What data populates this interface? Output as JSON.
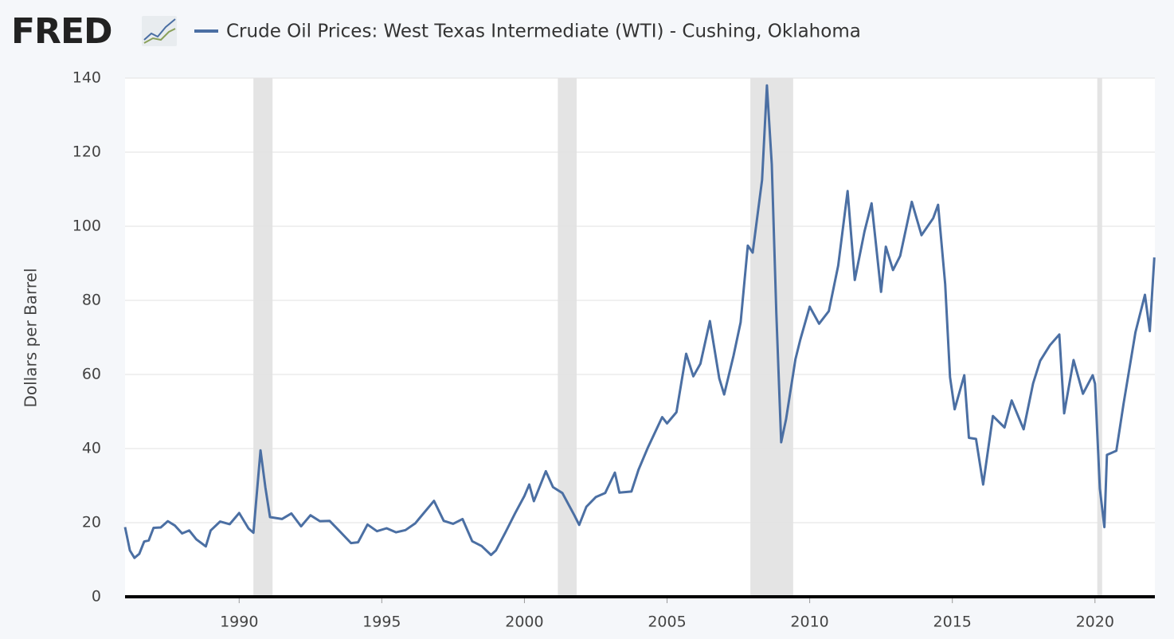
{
  "logo": "FRED",
  "chart_data": {
    "type": "line",
    "title": "Crude Oil Prices: West Texas Intermediate (WTI) - Cushing, Oklahoma",
    "y_label": "Dollars per Barrel",
    "series": [
      {
        "name": "Crude Oil Prices: West Texas Intermediate (WTI) - Cushing, Oklahoma",
        "color": "#4b6fa3",
        "x": [
          1986.0,
          1986.17,
          1986.33,
          1986.5,
          1986.67,
          1986.83,
          1987.0,
          1987.25,
          1987.5,
          1987.75,
          1988.0,
          1988.25,
          1988.5,
          1988.83,
          1989.0,
          1989.33,
          1989.67,
          1990.0,
          1990.33,
          1990.5,
          1990.75,
          1990.92,
          1991.08,
          1991.5,
          1991.83,
          1992.17,
          1992.5,
          1992.83,
          1993.17,
          1993.5,
          1993.92,
          1994.17,
          1994.5,
          1994.83,
          1995.17,
          1995.5,
          1995.83,
          1996.17,
          1996.33,
          1996.83,
          1997.17,
          1997.5,
          1997.83,
          1998.17,
          1998.5,
          1998.83,
          1999.0,
          1999.33,
          1999.67,
          2000.0,
          2000.17,
          2000.33,
          2000.75,
          2001.0,
          2001.33,
          2001.75,
          2001.92,
          2002.17,
          2002.5,
          2002.83,
          2003.17,
          2003.33,
          2003.75,
          2004.0,
          2004.33,
          2004.83,
          2005.0,
          2005.33,
          2005.67,
          2005.92,
          2006.17,
          2006.5,
          2006.83,
          2007.0,
          2007.33,
          2007.58,
          2007.83,
          2008.0,
          2008.33,
          2008.5,
          2008.67,
          2008.83,
          2009.0,
          2009.17,
          2009.5,
          2009.67,
          2010.0,
          2010.33,
          2010.67,
          2011.0,
          2011.33,
          2011.58,
          2011.92,
          2012.17,
          2012.5,
          2012.67,
          2012.92,
          2013.17,
          2013.58,
          2013.92,
          2014.33,
          2014.5,
          2014.75,
          2014.92,
          2015.08,
          2015.42,
          2015.58,
          2015.83,
          2016.08,
          2016.42,
          2016.83,
          2017.08,
          2017.5,
          2017.83,
          2018.08,
          2018.42,
          2018.75,
          2018.92,
          2019.25,
          2019.58,
          2019.92,
          2020.0,
          2020.17,
          2020.33,
          2020.42,
          2020.75,
          2021.0,
          2021.42,
          2021.75,
          2021.92,
          2022.08
        ],
        "values": [
          18.8,
          12.5,
          10.5,
          11.6,
          14.9,
          15.2,
          18.6,
          18.7,
          20.4,
          19.2,
          17.1,
          17.9,
          15.5,
          13.6,
          17.9,
          20.3,
          19.6,
          22.6,
          18.4,
          17.3,
          39.5,
          29.5,
          21.5,
          21.0,
          22.5,
          19.0,
          22.0,
          20.4,
          20.5,
          17.9,
          14.5,
          14.7,
          19.5,
          17.7,
          18.5,
          17.4,
          18.0,
          19.8,
          21.3,
          25.9,
          20.5,
          19.7,
          21.0,
          15.0,
          13.7,
          11.3,
          12.5,
          17.3,
          22.5,
          27.2,
          30.3,
          25.8,
          33.9,
          29.6,
          28.0,
          22.0,
          19.4,
          24.3,
          26.9,
          28.0,
          33.5,
          28.1,
          28.4,
          34.3,
          40.3,
          48.5,
          46.8,
          49.8,
          65.6,
          59.5,
          62.9,
          74.4,
          58.9,
          54.6,
          65.1,
          74.1,
          94.8,
          92.9,
          112.5,
          138.0,
          116.7,
          76.6,
          41.7,
          47.9,
          64.1,
          69.4,
          78.3,
          73.7,
          77.1,
          89.4,
          109.5,
          85.5,
          98.6,
          106.2,
          82.3,
          94.5,
          88.2,
          92.0,
          106.6,
          97.6,
          102.2,
          105.8,
          84.4,
          59.3,
          50.6,
          59.8,
          42.9,
          42.6,
          30.3,
          48.8,
          45.7,
          53.0,
          45.2,
          57.6,
          63.7,
          67.9,
          70.8,
          49.5,
          63.9,
          54.8,
          59.8,
          57.5,
          29.2,
          18.8,
          38.3,
          39.4,
          52.0,
          71.4,
          81.5,
          71.7,
          91.6
        ]
      }
    ],
    "shaded_periods": [
      [
        1990.5,
        1991.17
      ],
      [
        2001.17,
        2001.83
      ],
      [
        2007.92,
        2009.42
      ],
      [
        2020.08,
        2020.25
      ]
    ],
    "xlim": [
      1986.0,
      2022.1
    ],
    "xticks": [
      1990,
      1995,
      2000,
      2005,
      2010,
      2015,
      2020
    ],
    "ylim": [
      0,
      140
    ],
    "yticks": [
      0,
      20,
      40,
      60,
      80,
      100,
      120,
      140
    ],
    "grid": true
  }
}
